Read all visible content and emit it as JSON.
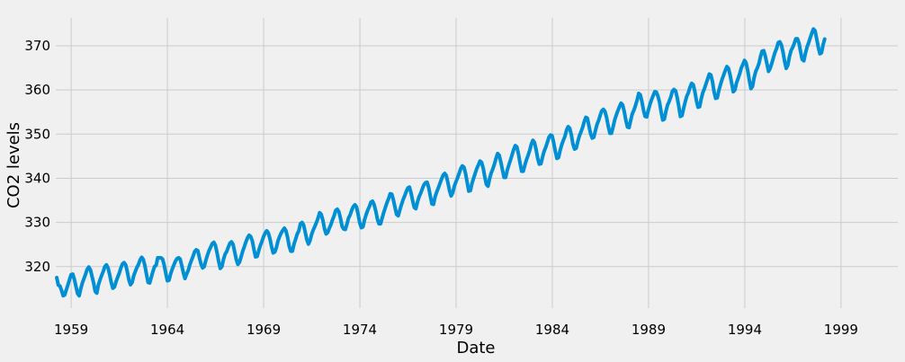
{
  "chart_data": {
    "type": "line",
    "title": "",
    "xlabel": "Date",
    "ylabel": "CO2 levels",
    "xlim": [
      1958.2,
      2001.95
    ],
    "ylim": [
      310.6,
      376.3
    ],
    "grid": true,
    "x_ticks": [
      "1959",
      "1964",
      "1969",
      "1974",
      "1979",
      "1984",
      "1989",
      "1994",
      "1999"
    ],
    "y_ticks": [
      "320",
      "330",
      "340",
      "350",
      "360",
      "370"
    ],
    "line_color": "#008fd5",
    "background_color": "#f0f0f0",
    "grid_color": "#cbcbcb",
    "x_start": 1958.25,
    "x_step": 0.0833,
    "series": [
      {
        "values": [
          317.5,
          315.8,
          315.6,
          314.6,
          313.4,
          313.6,
          314.8,
          315.9,
          317.1,
          318.2,
          318.3,
          317.1,
          315.5,
          313.9,
          313.4,
          315.0,
          316.3,
          317.3,
          318.3,
          319.4,
          319.9,
          319.3,
          317.8,
          316.3,
          314.4,
          314.0,
          315.9,
          317.0,
          318.0,
          318.9,
          320.0,
          320.4,
          319.7,
          318.2,
          316.4,
          315.1,
          315.4,
          316.6,
          317.6,
          318.5,
          319.7,
          320.6,
          320.9,
          320.4,
          318.9,
          317.0,
          315.9,
          316.4,
          317.9,
          318.9,
          319.8,
          320.5,
          321.5,
          322.1,
          321.6,
          320.2,
          318.2,
          316.4,
          316.3,
          317.6,
          318.9,
          320.0,
          320.3,
          322.0,
          322.0,
          322.0,
          321.7,
          320.4,
          318.5,
          316.8,
          316.9,
          318.3,
          319.4,
          320.3,
          321.2,
          321.8,
          322.0,
          321.7,
          320.2,
          318.6,
          317.3,
          318.3,
          319.1,
          320.4,
          321.4,
          322.3,
          323.4,
          323.8,
          323.6,
          322.0,
          320.6,
          319.7,
          320.0,
          321.4,
          322.6,
          323.6,
          324.4,
          325.2,
          325.5,
          324.8,
          323.1,
          321.2,
          319.6,
          320.0,
          321.6,
          322.8,
          323.4,
          324.4,
          325.3,
          325.6,
          325.0,
          323.3,
          321.6,
          320.5,
          321.0,
          322.2,
          323.5,
          324.5,
          325.6,
          326.5,
          327.1,
          326.8,
          325.8,
          323.9,
          322.2,
          322.3,
          323.6,
          324.8,
          325.7,
          326.8,
          327.6,
          328.1,
          327.6,
          326.3,
          324.5,
          323.1,
          323.3,
          324.3,
          325.8,
          326.8,
          327.6,
          328.2,
          328.7,
          328.1,
          326.6,
          324.6,
          323.5,
          323.5,
          325.1,
          326.2,
          327.4,
          328.1,
          329.7,
          330.0,
          329.4,
          327.8,
          326.1,
          325.1,
          325.9,
          327.3,
          328.3,
          329.1,
          330.0,
          331.0,
          332.2,
          331.8,
          330.5,
          328.6,
          327.4,
          327.7,
          328.7,
          329.5,
          330.6,
          331.5,
          332.7,
          333.0,
          332.4,
          330.9,
          329.1,
          328.5,
          328.4,
          329.6,
          331.0,
          331.7,
          332.8,
          333.6,
          334.0,
          333.5,
          331.8,
          329.9,
          328.8,
          329.0,
          330.6,
          331.8,
          332.8,
          333.6,
          334.6,
          334.8,
          334.0,
          332.6,
          330.8,
          329.7,
          329.7,
          331.0,
          332.3,
          333.4,
          334.5,
          335.4,
          336.5,
          336.4,
          335.1,
          333.4,
          331.8,
          331.5,
          332.8,
          334.0,
          335.1,
          336.0,
          337.0,
          337.8,
          338.0,
          336.7,
          334.9,
          333.4,
          333.1,
          334.6,
          335.8,
          336.6,
          337.6,
          338.5,
          339.0,
          339.1,
          337.9,
          336.0,
          334.2,
          334.1,
          335.8,
          336.9,
          337.8,
          338.8,
          339.8,
          340.7,
          341.1,
          340.6,
          339.0,
          337.2,
          336.0,
          336.7,
          338.2,
          339.2,
          340.1,
          341.1,
          342.2,
          342.8,
          342.5,
          341.1,
          339.1,
          337.1,
          337.2,
          338.8,
          340.0,
          341.1,
          342.2,
          343.0,
          343.9,
          343.6,
          342.3,
          340.3,
          338.6,
          338.2,
          339.9,
          341.2,
          342.1,
          343.2,
          344.5,
          345.6,
          345.2,
          343.7,
          341.9,
          340.2,
          340.2,
          341.8,
          343.0,
          344.1,
          345.3,
          346.5,
          347.4,
          347.1,
          345.5,
          343.4,
          341.6,
          341.6,
          343.0,
          344.2,
          345.2,
          346.3,
          347.7,
          348.6,
          348.1,
          346.5,
          344.5,
          343.2,
          343.3,
          344.8,
          346.1,
          347.0,
          348.1,
          349.3,
          349.8,
          349.6,
          348.0,
          346.1,
          344.5,
          344.7,
          346.3,
          347.6,
          348.6,
          349.5,
          350.9,
          351.7,
          351.3,
          349.8,
          347.7,
          346.6,
          346.8,
          348.3,
          349.6,
          350.5,
          351.5,
          352.8,
          353.8,
          353.6,
          351.8,
          350.1,
          349.1,
          349.3,
          350.8,
          352.2,
          353.1,
          354.3,
          355.3,
          355.6,
          355.1,
          353.7,
          351.8,
          350.2,
          350.2,
          351.6,
          353.2,
          354.3,
          355.3,
          356.2,
          357.0,
          356.6,
          355.1,
          353.1,
          351.6,
          351.5,
          353.1,
          354.6,
          355.4,
          356.5,
          357.7,
          359.2,
          358.9,
          357.4,
          355.4,
          354.0,
          353.9,
          355.4,
          356.7,
          357.8,
          358.7,
          359.6,
          359.5,
          358.6,
          357.2,
          355.0,
          353.2,
          353.4,
          355.2,
          356.6,
          357.4,
          358.4,
          359.7,
          360.1,
          359.8,
          358.3,
          356.3,
          354.0,
          354.2,
          355.8,
          357.3,
          358.6,
          359.4,
          360.6,
          361.5,
          361.2,
          359.7,
          357.6,
          356.1,
          356.2,
          358.0,
          359.4,
          360.3,
          361.4,
          362.5,
          363.6,
          363.4,
          361.9,
          359.6,
          358.1,
          358.2,
          359.9,
          361.2,
          362.4,
          363.4,
          364.4,
          365.3,
          364.9,
          363.4,
          361.5,
          359.6,
          360.0,
          361.6,
          362.6,
          363.7,
          365.0,
          365.8,
          366.7,
          366.1,
          364.4,
          362.2,
          360.3,
          360.8,
          362.8,
          364.2,
          365.0,
          366.0,
          367.6,
          368.8,
          368.9,
          367.6,
          365.9,
          364.2,
          364.9,
          366.0,
          367.3,
          368.5,
          369.4,
          370.7,
          370.9,
          370.2,
          368.6,
          366.5,
          364.9,
          365.6,
          367.5,
          368.9,
          369.6,
          370.5,
          371.6,
          371.6,
          370.6,
          368.6,
          366.9,
          366.6,
          368.3,
          369.7,
          370.7,
          371.8,
          372.9,
          373.8,
          373.4,
          371.6,
          369.7,
          368.2,
          368.4,
          370.2,
          371.5
        ]
      }
    ]
  }
}
